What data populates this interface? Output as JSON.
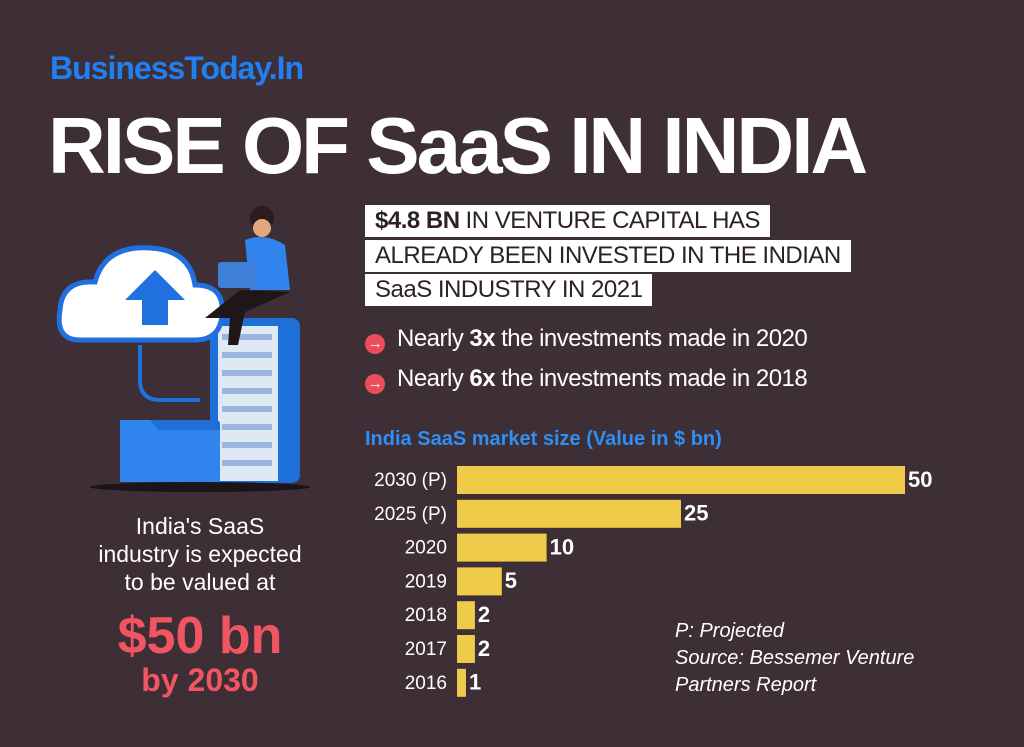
{
  "brand": "BusinessToday.In",
  "title": "RISE OF SaaS IN INDIA",
  "highlight": {
    "bold": "$4.8 BN",
    "lines": [
      "IN VENTURE CAPITAL HAS",
      "ALREADY BEEN INVESTED IN THE INDIAN",
      "SaaS INDUSTRY IN 2021"
    ]
  },
  "bullets": [
    {
      "prefix": "Nearly",
      "bold": "3x",
      "suffix": "the investments made in 2020"
    },
    {
      "prefix": "Nearly",
      "bold": "6x",
      "suffix": "the investments made in 2018"
    }
  ],
  "sidebar": {
    "lines": [
      "India's SaaS",
      "industry is expected",
      "to be valued at"
    ],
    "big": "$50 bn",
    "year": "by 2030"
  },
  "chart_data": {
    "type": "bar",
    "orientation": "horizontal",
    "title": "India SaaS market size (Value in $ bn)",
    "categories": [
      "2030 (P)",
      "2025 (P)",
      "2020",
      "2019",
      "2018",
      "2017",
      "2016"
    ],
    "values": [
      50,
      25,
      10,
      5,
      2,
      2,
      1
    ],
    "color": "#f0cb4a",
    "notes": [
      "P: Projected",
      "Source: Bessemer Venture",
      "Partners Report"
    ]
  }
}
